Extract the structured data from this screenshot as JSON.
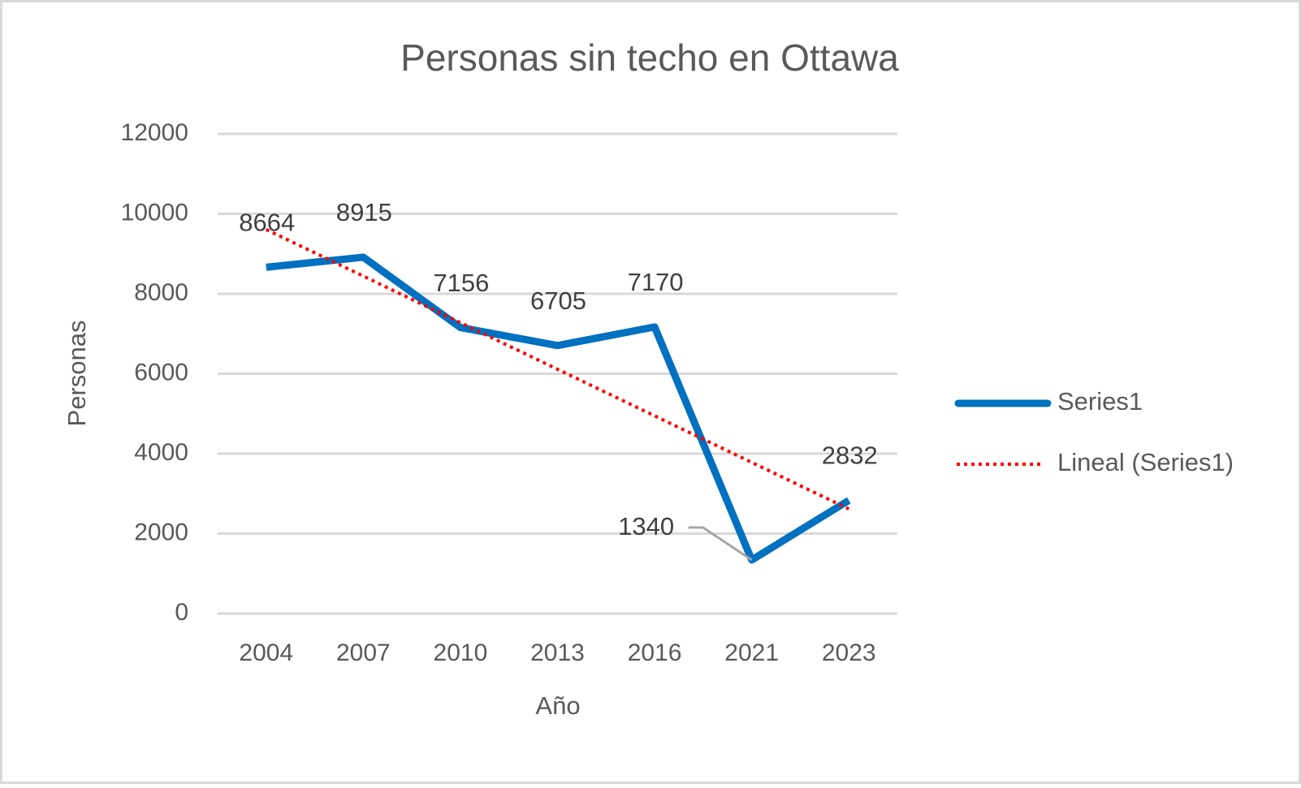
{
  "chart_data": {
    "type": "line",
    "title": "Personas sin techo en Ottawa",
    "x_label": "Año",
    "y_label": "Personas",
    "categories": [
      "2004",
      "2007",
      "2010",
      "2013",
      "2016",
      "2021",
      "2023"
    ],
    "series": [
      {
        "name": "Series1",
        "color": "#0070c0",
        "values": [
          8664,
          8915,
          7156,
          6705,
          7170,
          1340,
          2832
        ]
      }
    ],
    "trendline": {
      "name": "Lineal (Series1)",
      "type": "linear",
      "color": "#ff0000"
    },
    "ylim": [
      0,
      12000
    ],
    "yticks": [
      0,
      2000,
      4000,
      6000,
      8000,
      10000,
      12000
    ],
    "grid": true,
    "data_labels": true,
    "legend": "right"
  }
}
